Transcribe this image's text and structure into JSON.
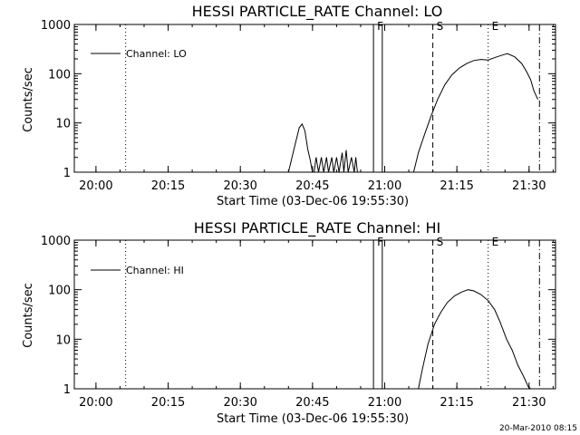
{
  "footer": {
    "timestamp": "20-Mar-2010 08:15"
  },
  "chart_data": [
    {
      "type": "line",
      "title": "HESSI PARTICLE_RATE Channel: LO",
      "xlabel": "Start Time (03-Dec-06 19:55:30)",
      "ylabel": "Counts/sec",
      "y_scale": "log",
      "ylim": [
        1,
        1000
      ],
      "xlim": [
        "19:55:30",
        "21:35:30"
      ],
      "x_ticks": [
        "20:00",
        "20:15",
        "20:30",
        "20:45",
        "21:00",
        "21:15",
        "21:30"
      ],
      "y_ticks": [
        "1",
        "10",
        "100",
        "1000"
      ],
      "grid": false,
      "legend": {
        "entries": [
          "Channel: LO"
        ],
        "placement": "top-left"
      },
      "markers": [
        {
          "label": "",
          "time": "20:06:10",
          "style": "dotted"
        },
        {
          "label": "F",
          "time": "20:57:40",
          "style": "solid"
        },
        {
          "label": "",
          "time": "20:59:30",
          "style": "solid"
        },
        {
          "label": "S",
          "time": "21:10:00",
          "style": "dashed"
        },
        {
          "label": "E",
          "time": "21:21:30",
          "style": "dotted"
        },
        {
          "label": "",
          "time": "21:32:10",
          "style": "dash-dot"
        }
      ],
      "series": [
        {
          "name": "Channel: LO",
          "points": [
            [
              "20:40:00",
              1
            ],
            [
              "20:41:10",
              3
            ],
            [
              "20:42:15",
              8
            ],
            [
              "20:42:50",
              9.5
            ],
            [
              "20:43:25",
              7
            ],
            [
              "20:44:00",
              3
            ],
            [
              "20:44:30",
              1.8
            ],
            [
              "20:45:00",
              1
            ],
            [
              "20:45:20",
              1
            ],
            [
              "20:45:45",
              2
            ],
            [
              "20:46:15",
              1
            ],
            [
              "20:46:50",
              2
            ],
            [
              "20:47:20",
              1
            ],
            [
              "20:47:55",
              2
            ],
            [
              "20:48:20",
              1
            ],
            [
              "20:49:00",
              2
            ],
            [
              "20:49:25",
              1
            ],
            [
              "20:50:00",
              2
            ],
            [
              "20:50:30",
              1
            ],
            [
              "20:51:10",
              2.5
            ],
            [
              "20:51:30",
              1
            ],
            [
              "20:52:00",
              2.8
            ],
            [
              "20:52:25",
              1
            ],
            [
              "20:53:05",
              2
            ],
            [
              "20:53:40",
              1
            ],
            [
              "20:54:00",
              2
            ],
            [
              "20:54:20",
              1
            ],
            [
              "21:06:00",
              1
            ],
            [
              "21:07:00",
              2.5
            ],
            [
              "21:08:20",
              6
            ],
            [
              "21:09:40",
              14
            ],
            [
              "21:11:00",
              30
            ],
            [
              "21:12:30",
              60
            ],
            [
              "21:14:00",
              95
            ],
            [
              "21:15:30",
              130
            ],
            [
              "21:17:00",
              160
            ],
            [
              "21:18:30",
              185
            ],
            [
              "21:20:00",
              195
            ],
            [
              "21:21:30",
              190
            ],
            [
              "21:23:00",
              215
            ],
            [
              "21:24:30",
              240
            ],
            [
              "21:25:30",
              255
            ],
            [
              "21:27:00",
              220
            ],
            [
              "21:28:30",
              160
            ],
            [
              "21:29:30",
              110
            ],
            [
              "21:30:20",
              75
            ],
            [
              "21:31:00",
              45
            ],
            [
              "21:31:50",
              30
            ]
          ]
        }
      ]
    },
    {
      "type": "line",
      "title": "HESSI PARTICLE_RATE Channel: HI",
      "xlabel": "Start Time (03-Dec-06 19:55:30)",
      "ylabel": "Counts/sec",
      "y_scale": "log",
      "ylim": [
        1,
        1000
      ],
      "xlim": [
        "19:55:30",
        "21:35:30"
      ],
      "x_ticks": [
        "20:00",
        "20:15",
        "20:30",
        "20:45",
        "21:00",
        "21:15",
        "21:30"
      ],
      "y_ticks": [
        "1",
        "10",
        "100",
        "1000"
      ],
      "grid": false,
      "legend": {
        "entries": [
          "Channel: HI"
        ],
        "placement": "top-left"
      },
      "markers": [
        {
          "label": "",
          "time": "20:06:10",
          "style": "dotted"
        },
        {
          "label": "F",
          "time": "20:57:40",
          "style": "solid"
        },
        {
          "label": "",
          "time": "20:59:30",
          "style": "solid"
        },
        {
          "label": "S",
          "time": "21:10:00",
          "style": "dashed"
        },
        {
          "label": "E",
          "time": "21:21:30",
          "style": "dotted"
        },
        {
          "label": "",
          "time": "21:32:10",
          "style": "dash-dot"
        }
      ],
      "series": [
        {
          "name": "Channel: HI",
          "points": [
            [
              "21:07:00",
              1
            ],
            [
              "21:07:50",
              2.5
            ],
            [
              "21:09:00",
              8
            ],
            [
              "21:10:20",
              20
            ],
            [
              "21:11:40",
              35
            ],
            [
              "21:13:00",
              55
            ],
            [
              "21:14:30",
              75
            ],
            [
              "21:16:00",
              90
            ],
            [
              "21:17:20",
              100
            ],
            [
              "21:18:30",
              95
            ],
            [
              "21:20:00",
              80
            ],
            [
              "21:21:30",
              60
            ],
            [
              "21:22:50",
              40
            ],
            [
              "21:24:00",
              22
            ],
            [
              "21:25:20",
              10
            ],
            [
              "21:26:30",
              6
            ],
            [
              "21:27:40",
              3
            ],
            [
              "21:28:50",
              1.8
            ],
            [
              "21:29:50",
              1.1
            ],
            [
              "21:30:20",
              1
            ]
          ]
        }
      ]
    }
  ]
}
